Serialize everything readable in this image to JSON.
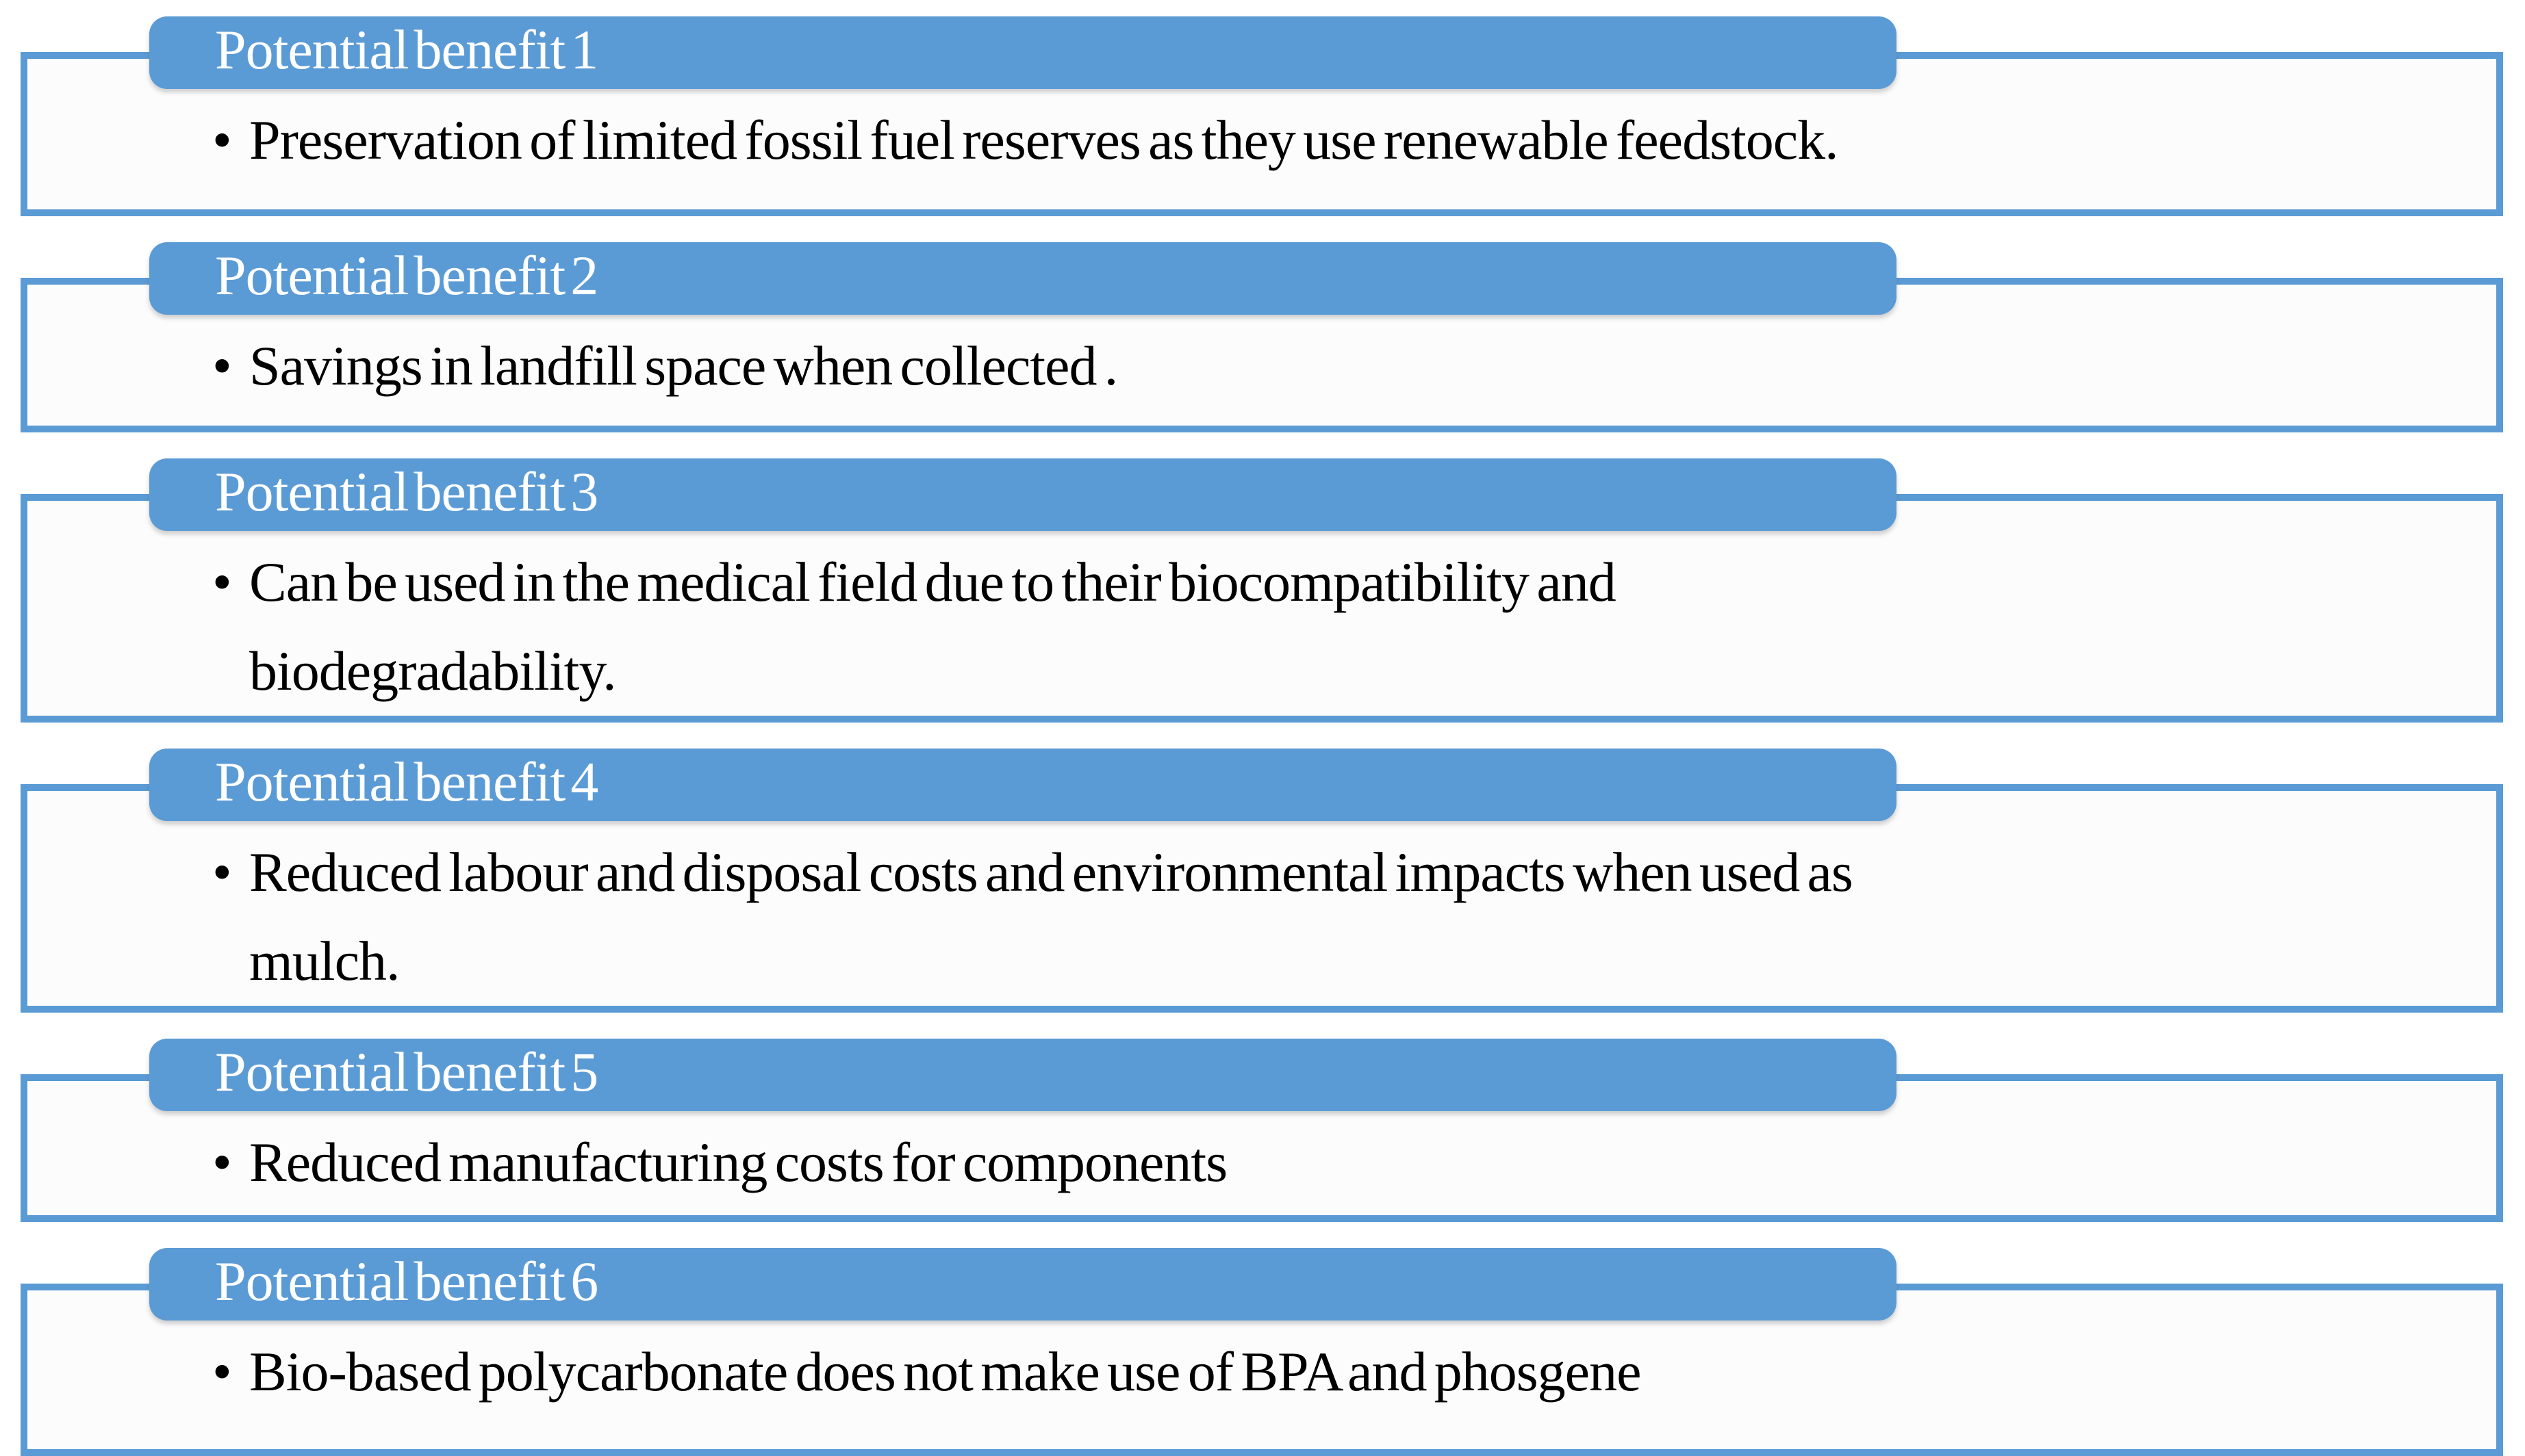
{
  "diagram": {
    "accent_color": "#5b9bd5",
    "text_color": "#000000",
    "bullet_char": "•",
    "items": [
      {
        "header": "Potential benefit 1",
        "text": "Preservation of limited fossil fuel reserves as they use renewable feedstock.",
        "lines": [
          "Preservation of limited fossil fuel reserves as they use renewable feedstock."
        ]
      },
      {
        "header": "Potential benefit 2",
        "text": "Savings in landfill space when collected .",
        "lines": [
          "Savings in landfill space when collected ."
        ]
      },
      {
        "header": "Potential benefit 3",
        "text": "Can be used in the medical field due to their biocompatibility and biodegradability.",
        "lines": [
          "Can be used in the medical field due to their biocompatibility and",
          "biodegradability."
        ]
      },
      {
        "header": "Potential benefit 4",
        "text": "Reduced labour and disposal costs and environmental impacts when used as mulch.",
        "lines": [
          "Reduced labour and disposal costs and environmental impacts when used as",
          "mulch."
        ]
      },
      {
        "header": "Potential benefit 5",
        "text": "Reduced manufacturing costs for components",
        "lines": [
          "Reduced manufacturing costs for components"
        ]
      },
      {
        "header": "Potential benefit 6",
        "text": "Bio-based polycarbonate does not make use of BPA and phosgene",
        "lines": [
          "Bio-based polycarbonate does not make use of BPA and phosgene"
        ]
      }
    ]
  }
}
